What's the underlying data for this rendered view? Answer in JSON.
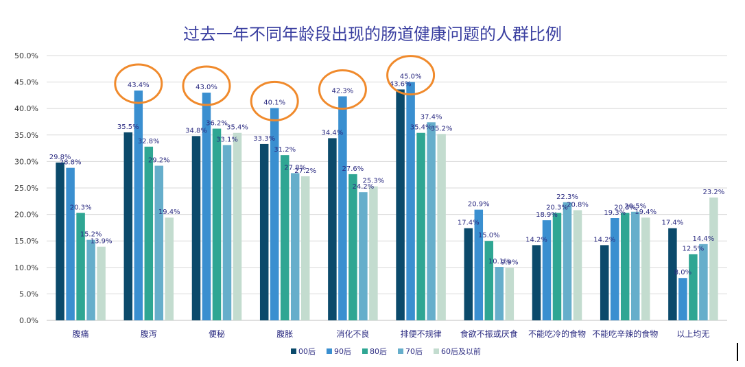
{
  "chart_data": {
    "type": "bar",
    "title": "过去一年不同年龄段出现的肠道健康问题的人群比例",
    "xlabel": "",
    "ylabel": "",
    "ylim": [
      0,
      50
    ],
    "y_ticks": [
      "0.0%",
      "5.0%",
      "10.0%",
      "15.0%",
      "20.0%",
      "25.0%",
      "30.0%",
      "35.0%",
      "40.0%",
      "45.0%",
      "50.0%"
    ],
    "grid": true,
    "legend_position": "bottom",
    "categories": [
      "腹痛",
      "腹泻",
      "便秘",
      "腹胀",
      "消化不良",
      "排便不规律",
      "食欲不振或厌食",
      "不能吃冷的食物",
      "不能吃辛辣的食物",
      "以上均无"
    ],
    "series": [
      {
        "name": "00后",
        "color": "#0b4a6b",
        "values": [
          29.8,
          35.5,
          34.8,
          33.3,
          34.4,
          43.6,
          17.4,
          14.2,
          14.2,
          17.4
        ],
        "labels": [
          "29.8%",
          "35.5%",
          "34.8%",
          "33.3%",
          "34.4%",
          "43.6%",
          "17.4%",
          "14.2%",
          "14.2%",
          "17.4%"
        ]
      },
      {
        "name": "90后",
        "color": "#3a8fd0",
        "values": [
          28.8,
          43.4,
          43.0,
          40.1,
          42.3,
          45.0,
          20.9,
          18.9,
          19.3,
          8.0
        ],
        "labels": [
          "28.8%",
          "43.4%",
          "43.0%",
          "40.1%",
          "42.3%",
          "45.0%",
          "20.9%",
          "18.9%",
          "19.3%",
          "8.0%"
        ]
      },
      {
        "name": "80后",
        "color": "#2fa693",
        "values": [
          20.3,
          32.8,
          36.2,
          31.2,
          27.6,
          35.4,
          15.0,
          20.3,
          20.3,
          12.5
        ],
        "labels": [
          "20.3%",
          "32.8%",
          "36.2%",
          "31.2%",
          "27.6%",
          "35.4%",
          "15.0%",
          "20.3%",
          "20.3%",
          "12.5%"
        ]
      },
      {
        "name": "70后",
        "color": "#66aecb",
        "values": [
          15.2,
          29.2,
          33.1,
          27.8,
          24.2,
          37.4,
          10.1,
          22.3,
          20.5,
          14.4
        ],
        "labels": [
          "15.2%",
          "29.2%",
          "33.1%",
          "27.8%",
          "24.2%",
          "37.4%",
          "10.1%",
          "22.3%",
          "20.5%",
          "14.4%"
        ]
      },
      {
        "name": "60后及以前",
        "color": "#c3dccf",
        "values": [
          13.9,
          19.4,
          35.4,
          27.2,
          25.3,
          35.2,
          9.9,
          20.8,
          19.4,
          23.2
        ],
        "labels": [
          "13.9%",
          "19.4%",
          "35.4%",
          "27.2%",
          "25.3%",
          "35.2%",
          "9.9%",
          "20.8%",
          "19.4%",
          "23.2%"
        ]
      }
    ],
    "highlight_circles": [
      {
        "category": "腹泻",
        "series": "90后",
        "color": "#f08a2c"
      },
      {
        "category": "便秘",
        "series": "90后",
        "color": "#f08a2c"
      },
      {
        "category": "腹胀",
        "series": "90后",
        "color": "#f08a2c"
      },
      {
        "category": "消化不良",
        "series": "90后",
        "color": "#f08a2c"
      },
      {
        "category": "排便不规律",
        "series": "90后",
        "color": "#f08a2c"
      }
    ]
  }
}
